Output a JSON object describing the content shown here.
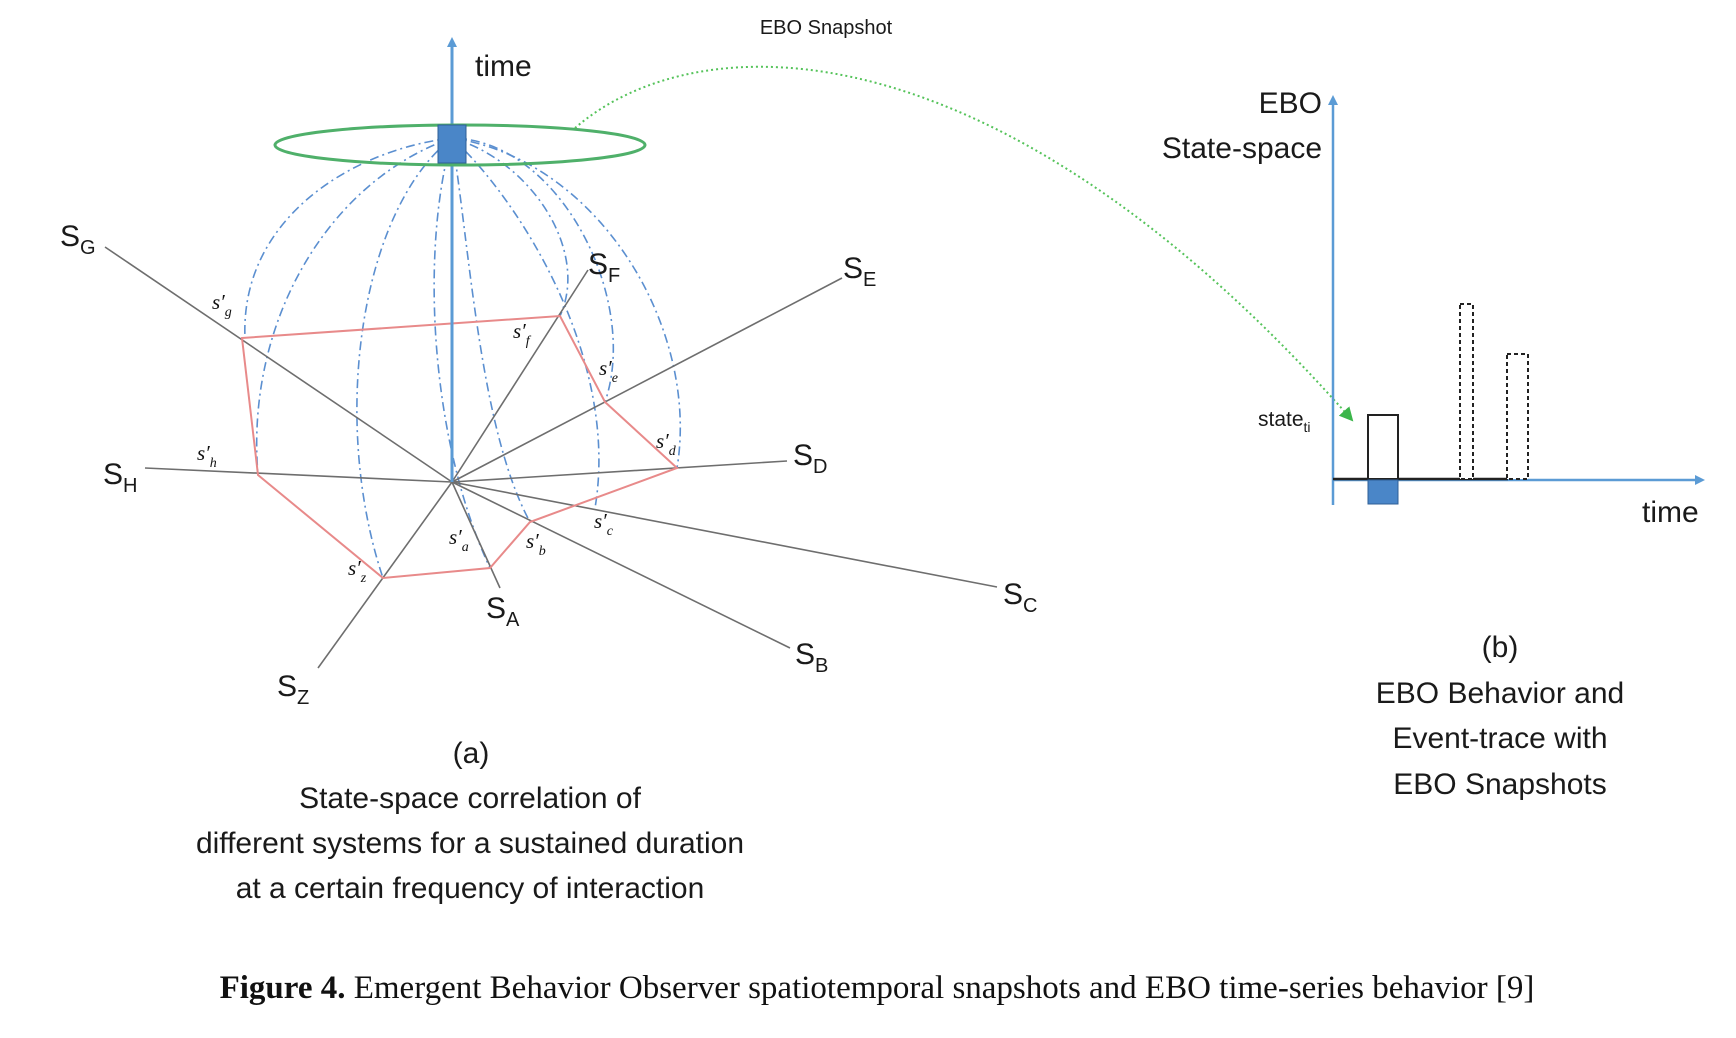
{
  "snapshot_label": "EBO Snapshot",
  "left": {
    "time_label": "time",
    "axes": {
      "G": {
        "base": "S",
        "sub": "G"
      },
      "F": {
        "base": "S",
        "sub": "F"
      },
      "E": {
        "base": "S",
        "sub": "E"
      },
      "D": {
        "base": "S",
        "sub": "D"
      },
      "C": {
        "base": "S",
        "sub": "C"
      },
      "B": {
        "base": "S",
        "sub": "B"
      },
      "A": {
        "base": "S",
        "sub": "A"
      },
      "Z": {
        "base": "S",
        "sub": "Z"
      },
      "H": {
        "base": "S",
        "sub": "H"
      }
    },
    "points": {
      "g": {
        "base": "s′",
        "sub": "g"
      },
      "f": {
        "base": "s′",
        "sub": "f"
      },
      "e": {
        "base": "s′",
        "sub": "e"
      },
      "d": {
        "base": "s′",
        "sub": "d"
      },
      "c": {
        "base": "s′",
        "sub": "c"
      },
      "b": {
        "base": "s′",
        "sub": "b"
      },
      "a": {
        "base": "s′",
        "sub": "a"
      },
      "z": {
        "base": "s′",
        "sub": "z"
      },
      "h": {
        "base": "s′",
        "sub": "h"
      }
    },
    "panel_label": "(a)",
    "caption_lines": [
      "State-space correlation of",
      "different systems for a sustained duration",
      "at a certain frequency of interaction"
    ]
  },
  "right": {
    "y_axis_label_1": "EBO",
    "y_axis_label_2": "State-space",
    "x_axis_label": "time",
    "state_label": {
      "base": "state",
      "sub": "ti"
    },
    "panel_label": "(b)",
    "caption_lines": [
      "EBO Behavior and",
      "Event-trace with",
      "EBO Snapshots"
    ]
  },
  "figure_caption": {
    "bold": "Figure 4.",
    "text": " Emergent Behavior Observer spatiotemporal snapshots and EBO time-series behavior [9]"
  },
  "colors": {
    "time_axis": "#5b9bd5",
    "polygon": "#e88a8a",
    "ring": "#4fb06a",
    "arc": "#55c35a"
  }
}
